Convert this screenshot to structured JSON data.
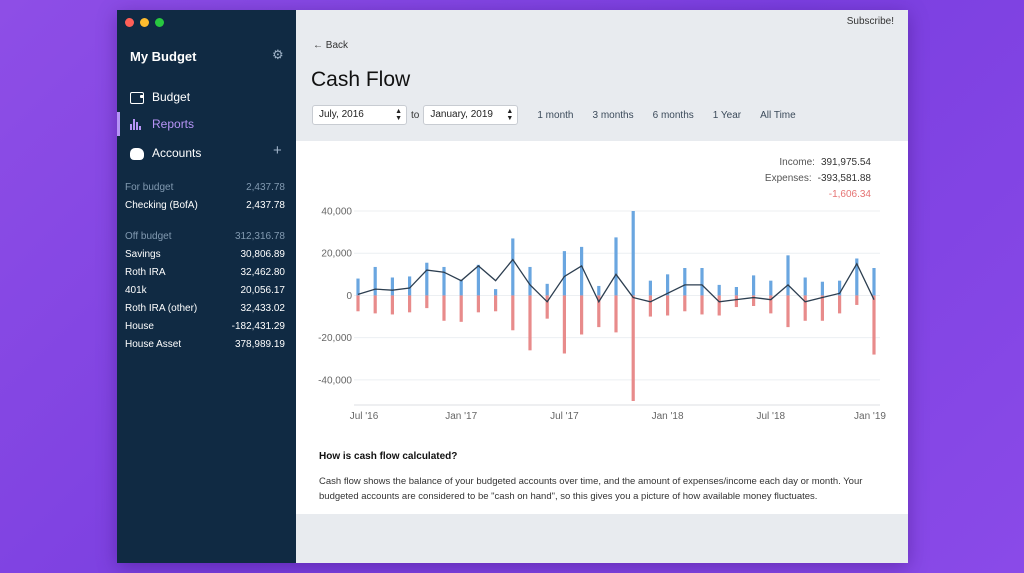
{
  "window": {
    "traffic_lights": [
      "close",
      "minimize",
      "zoom"
    ]
  },
  "sidebar": {
    "app_title": "My Budget",
    "nav": [
      {
        "label": "Budget",
        "icon": "wallet-icon"
      },
      {
        "label": "Reports",
        "icon": "bar-chart-icon",
        "active": true
      },
      {
        "label": "Accounts",
        "icon": "piggy-bank-icon"
      }
    ],
    "for_budget": {
      "label": "For budget",
      "total": "2,437.78",
      "accounts": [
        {
          "name": "Checking (BofA)",
          "balance": "2,437.78"
        }
      ]
    },
    "off_budget": {
      "label": "Off budget",
      "total": "312,316.78",
      "accounts": [
        {
          "name": "Savings",
          "balance": "30,806.89"
        },
        {
          "name": "Roth IRA",
          "balance": "32,462.80"
        },
        {
          "name": "401k",
          "balance": "20,056.17"
        },
        {
          "name": "Roth IRA (other)",
          "balance": "32,433.02"
        },
        {
          "name": "House",
          "balance": "-182,431.29"
        },
        {
          "name": "House Asset",
          "balance": "378,989.19"
        }
      ]
    }
  },
  "header": {
    "subscribe": "Subscribe!",
    "back": "Back",
    "title": "Cash Flow"
  },
  "controls": {
    "start": "July, 2016",
    "to": "to",
    "end": "January, 2019",
    "ranges": [
      "1 month",
      "3 months",
      "6 months",
      "1 Year",
      "All Time"
    ]
  },
  "summary": {
    "income_label": "Income:",
    "income": "391,975.54",
    "expenses_label": "Expenses:",
    "expenses": "-393,581.88",
    "net": "-1,606.34"
  },
  "explanation": {
    "title": "How is cash flow calculated?",
    "body": "Cash flow shows the balance of your budgeted accounts over time, and the amount of expenses/income each day or month. Your budgeted accounts are considered to be \"cash on hand\", so this gives you a picture of how available money fluctuates."
  },
  "colors": {
    "income": "#6aa6e0",
    "expense": "#e88b8b",
    "balance": "#2c3e50",
    "accent": "#b794f6",
    "sidebar": "#102a43"
  },
  "chart_data": {
    "type": "bar",
    "title": "",
    "xlabel": "",
    "ylabel": "",
    "ylim": [
      -50000,
      40000
    ],
    "yticks": [
      {
        "value": 40000,
        "label": "40,000"
      },
      {
        "value": 20000,
        "label": "20,000"
      },
      {
        "value": 0,
        "label": "0"
      },
      {
        "value": -20000,
        "label": "-20,000"
      },
      {
        "value": -40000,
        "label": "-40,000"
      }
    ],
    "xticks": [
      {
        "index": 0,
        "label": "Jul '16"
      },
      {
        "index": 6,
        "label": "Jan '17"
      },
      {
        "index": 12,
        "label": "Jul '17"
      },
      {
        "index": 18,
        "label": "Jan '18"
      },
      {
        "index": 24,
        "label": "Jul '18"
      },
      {
        "index": 30,
        "label": "Jan '19"
      }
    ],
    "categories": [
      "Jul 16",
      "Aug 16",
      "Sep 16",
      "Oct 16",
      "Nov 16",
      "Dec 16",
      "Jan 17",
      "Feb 17",
      "Mar 17",
      "Apr 17",
      "May 17",
      "Jun 17",
      "Jul 17",
      "Aug 17",
      "Sep 17",
      "Oct 17",
      "Nov 17",
      "Dec 17",
      "Jan 18",
      "Feb 18",
      "Mar 18",
      "Apr 18",
      "May 18",
      "Jun 18",
      "Jul 18",
      "Aug 18",
      "Sep 18",
      "Oct 18",
      "Nov 18",
      "Dec 18",
      "Jan 19"
    ],
    "series": [
      {
        "name": "Income",
        "values": [
          8000,
          13500,
          8500,
          9000,
          15500,
          13500,
          7500,
          14500,
          3000,
          27000,
          13500,
          5500,
          21000,
          23000,
          4500,
          27500,
          40000,
          7000,
          10000,
          13000,
          13000,
          5000,
          4000,
          9500,
          7000,
          19000,
          8500,
          6500,
          7000,
          17500,
          13000
        ]
      },
      {
        "name": "Expenses",
        "values": [
          -7500,
          -8500,
          -9000,
          -8000,
          -6000,
          -12000,
          -12500,
          -8000,
          -7500,
          -16500,
          -26000,
          -11000,
          -27500,
          -18500,
          -15000,
          -17500,
          -50000,
          -10000,
          -9500,
          -7500,
          -9000,
          -9500,
          -5500,
          -5000,
          -8500,
          -15000,
          -12000,
          -12000,
          -8500,
          -4500,
          -28000
        ]
      },
      {
        "name": "Balance",
        "values": [
          500,
          3000,
          2500,
          3500,
          12000,
          11000,
          7000,
          14000,
          7000,
          17000,
          5000,
          -3000,
          9000,
          14000,
          -3000,
          10000,
          -1000,
          -3000,
          1000,
          5000,
          5000,
          -3000,
          -2000,
          -1000,
          -2000,
          5000,
          -3000,
          -1000,
          1000,
          15000,
          -2000
        ]
      }
    ]
  }
}
